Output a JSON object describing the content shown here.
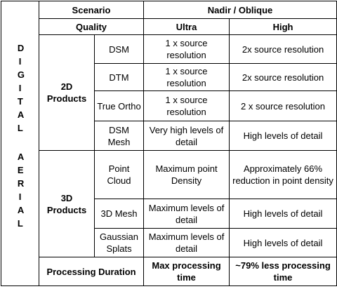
{
  "header": {
    "scenario": "Scenario",
    "nadir_oblique": "Nadir / Oblique",
    "quality": "Quality",
    "ultra": "Ultra",
    "high": "High"
  },
  "side_label": [
    "DIGITAL",
    "AERIAL"
  ],
  "groups": [
    {
      "name": "2D Products",
      "rows": [
        {
          "product": "DSM",
          "ultra": "1 x source resolution",
          "high": "2x source resolution"
        },
        {
          "product": "DTM",
          "ultra": "1 x source resolution",
          "high": "2x source resolution"
        },
        {
          "product": "True Ortho",
          "ultra": "1 x source resolution",
          "high": "2 x source resolution"
        },
        {
          "product": "DSM Mesh",
          "ultra": "Very high levels of detail",
          "high": "High levels of detail"
        }
      ]
    },
    {
      "name": "3D Products",
      "rows": [
        {
          "product": "Point Cloud",
          "ultra": "Maximum point Density",
          "high": "Approximately 66% reduction in point density"
        },
        {
          "product": "3D Mesh",
          "ultra": "Maximum levels of detail",
          "high": "High levels of detail"
        },
        {
          "product": "Gaussian Splats",
          "ultra": "Maximum levels of detail",
          "high": "High levels of detail"
        }
      ]
    }
  ],
  "footer": {
    "label": "Processing Duration",
    "ultra": "Max processing time",
    "high": "~79% less processing time"
  }
}
